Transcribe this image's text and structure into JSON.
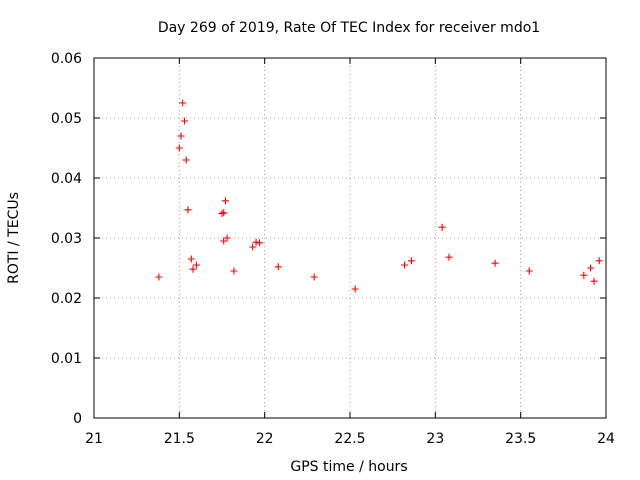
{
  "chart_data": {
    "type": "scatter",
    "title": "Day 269 of 2019, Rate Of TEC Index for receiver mdo1",
    "xlabel": "GPS time / hours",
    "ylabel": "ROTI / TECUs",
    "xlim": [
      21,
      24
    ],
    "ylim": [
      0,
      0.06
    ],
    "x_ticks": [
      21,
      21.5,
      22,
      22.5,
      23,
      23.5,
      24
    ],
    "x_tick_labels": [
      "21",
      "21.5",
      "22",
      "22.5",
      "23",
      "23.5",
      "24"
    ],
    "y_ticks": [
      0,
      0.01,
      0.02,
      0.03,
      0.04,
      0.05,
      0.06
    ],
    "y_tick_labels": [
      "0",
      "0.01",
      "0.02",
      "0.03",
      "0.04",
      "0.05",
      "0.06"
    ],
    "grid": true,
    "marker": "plus",
    "point_color": "#ff0000",
    "series": [
      {
        "name": "ROTI",
        "points": [
          [
            21.38,
            0.0235
          ],
          [
            21.52,
            0.0525
          ],
          [
            21.53,
            0.0495
          ],
          [
            21.51,
            0.047
          ],
          [
            21.5,
            0.045
          ],
          [
            21.54,
            0.043
          ],
          [
            21.55,
            0.0347
          ],
          [
            21.77,
            0.0362
          ],
          [
            21.76,
            0.0342
          ],
          [
            21.75,
            0.0341
          ],
          [
            21.78,
            0.03
          ],
          [
            21.76,
            0.0295
          ],
          [
            21.93,
            0.0285
          ],
          [
            21.95,
            0.0293
          ],
          [
            21.97,
            0.0292
          ],
          [
            23.04,
            0.0318
          ],
          [
            23.08,
            0.0268
          ],
          [
            23.35,
            0.0258
          ],
          [
            23.96,
            0.0262
          ],
          [
            23.91,
            0.025
          ],
          [
            21.57,
            0.0265
          ],
          [
            21.6,
            0.0255
          ],
          [
            21.58,
            0.0248
          ],
          [
            21.82,
            0.0245
          ],
          [
            22.08,
            0.0252
          ],
          [
            22.29,
            0.0235
          ],
          [
            22.53,
            0.0215
          ],
          [
            22.82,
            0.0255
          ],
          [
            22.86,
            0.0262
          ],
          [
            23.55,
            0.0245
          ],
          [
            23.87,
            0.0238
          ],
          [
            23.93,
            0.0228
          ]
        ]
      }
    ]
  }
}
